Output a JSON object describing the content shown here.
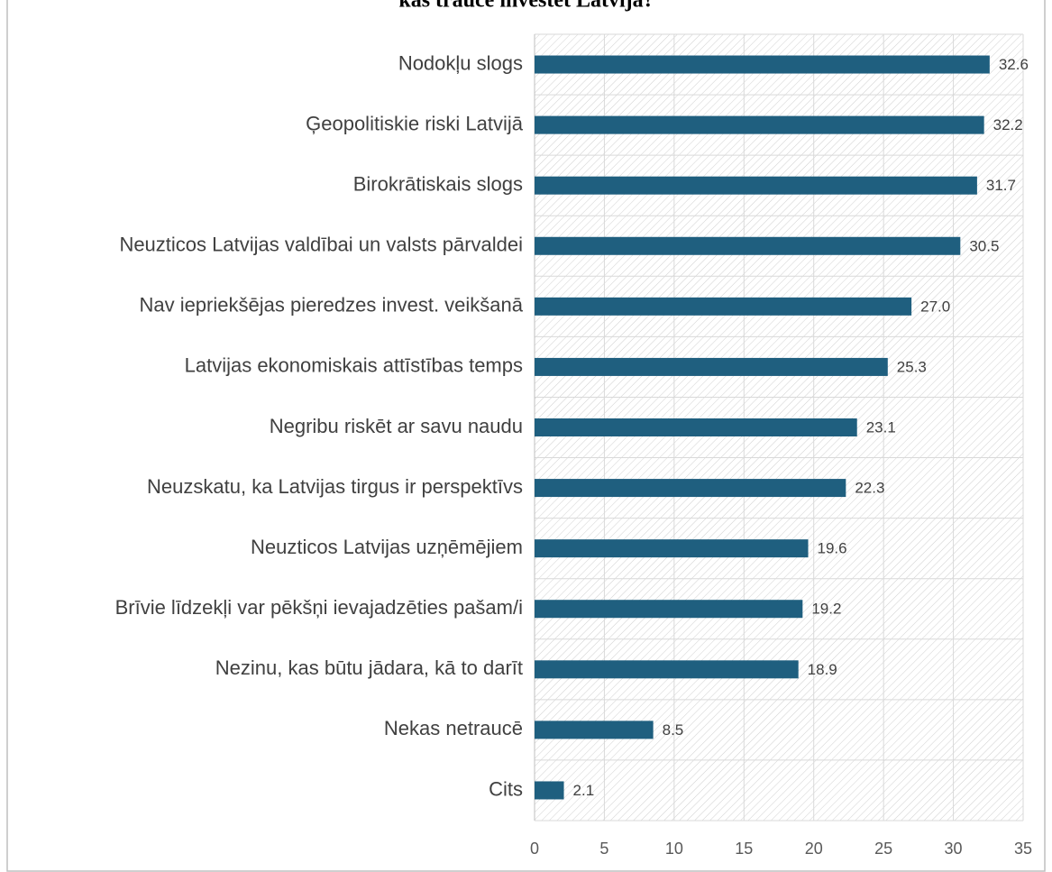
{
  "chart_data": {
    "type": "barh",
    "title": "kas traucē investēt Latvijā?",
    "categories": [
      "Nodokļu slogs",
      "Ģeopolitiskie riski Latvijā",
      "Birokrātiskais slogs",
      "Neuzticos Latvijas valdībai un valsts pārvaldei",
      "Nav iepriekšējas pieredzes invest. veikšanā",
      "Latvijas ekonomiskais attīstības temps",
      "Negribu riskēt ar savu naudu",
      "Neuzskatu, ka Latvijas tirgus ir perspektīvs",
      "Neuzticos Latvijas uzņēmējiem",
      "Brīvie līdzekļi var pēkšņi ievajadzēties pašam/i",
      "Nezinu, kas būtu jādara, kā to darīt",
      "Nekas netraucē",
      "Cits"
    ],
    "values": [
      32.6,
      32.2,
      31.7,
      30.5,
      27.0,
      25.3,
      23.1,
      22.3,
      19.6,
      19.2,
      18.9,
      8.5,
      2.1
    ],
    "value_labels": [
      "32.6",
      "32.2",
      "31.7",
      "30.5",
      "27.0",
      "25.3",
      "23.1",
      "22.3",
      "19.6",
      "19.2",
      "18.9",
      "8.5",
      "2.1"
    ],
    "color": "#1f5f7f",
    "xlim": [
      0,
      35
    ],
    "xticks": [
      0,
      5,
      10,
      15,
      20,
      25,
      30,
      35
    ],
    "grid": true
  }
}
